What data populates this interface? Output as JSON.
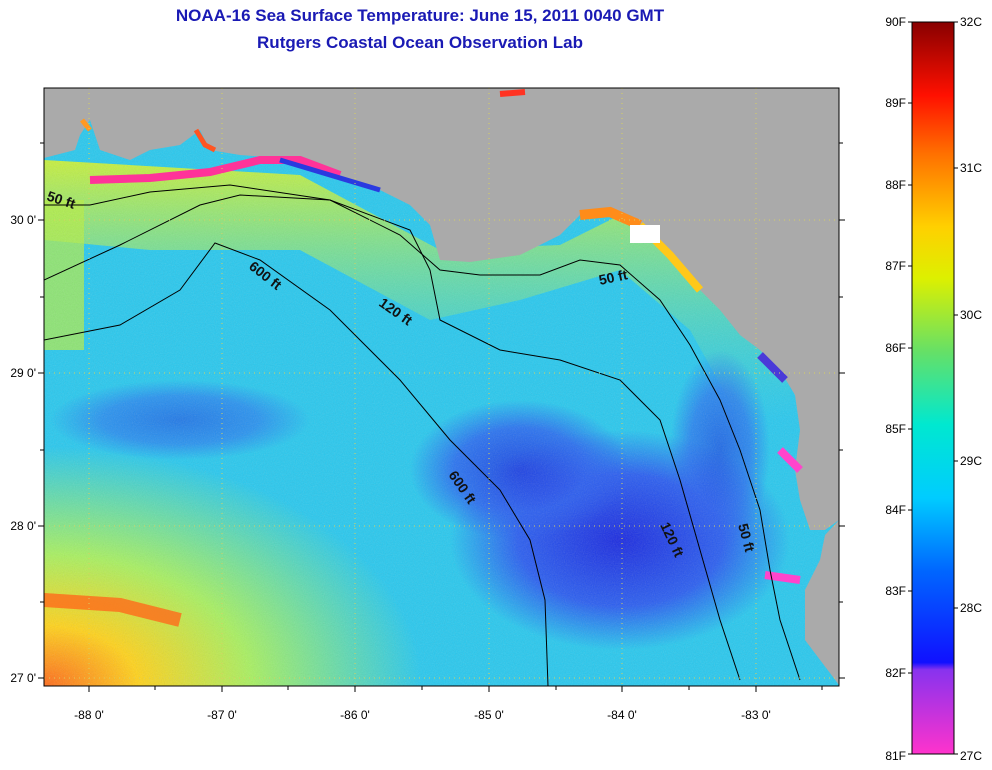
{
  "title": "NOAA-16 Sea Surface Temperature:  June 15, 2011 0040 GMT",
  "subtitle": "Rutgers Coastal Ocean Observation Lab",
  "map": {
    "lon_ticks": [
      "-88 0'",
      "-87 0'",
      "-86 0'",
      "-85 0'",
      "-84 0'",
      "-83 0'"
    ],
    "lat_ticks": [
      "30 0'",
      "29 0'",
      "28 0'",
      "27 0'"
    ],
    "contour_labels": [
      "50 ft",
      "600 ft",
      "120 ft",
      "50 ft",
      "600 ft",
      "120 ft",
      "50 ft"
    ],
    "colors": {
      "land": "#aaaaaa",
      "grid": "#d8d060",
      "contour": "#000000"
    }
  },
  "colorbar": {
    "fahrenheit_labels": [
      "90F",
      "89F",
      "88F",
      "87F",
      "86F",
      "85F",
      "84F",
      "83F",
      "82F",
      "81F"
    ],
    "celsius_labels": [
      "32C",
      "31C",
      "30C",
      "29C",
      "28C",
      "27C"
    ],
    "stops": [
      "#ff33cc",
      "#8833ee",
      "#0000ff",
      "#0099ff",
      "#00e0e0",
      "#66e066",
      "#ffff00",
      "#ff8800",
      "#ff0000",
      "#880000"
    ]
  }
}
